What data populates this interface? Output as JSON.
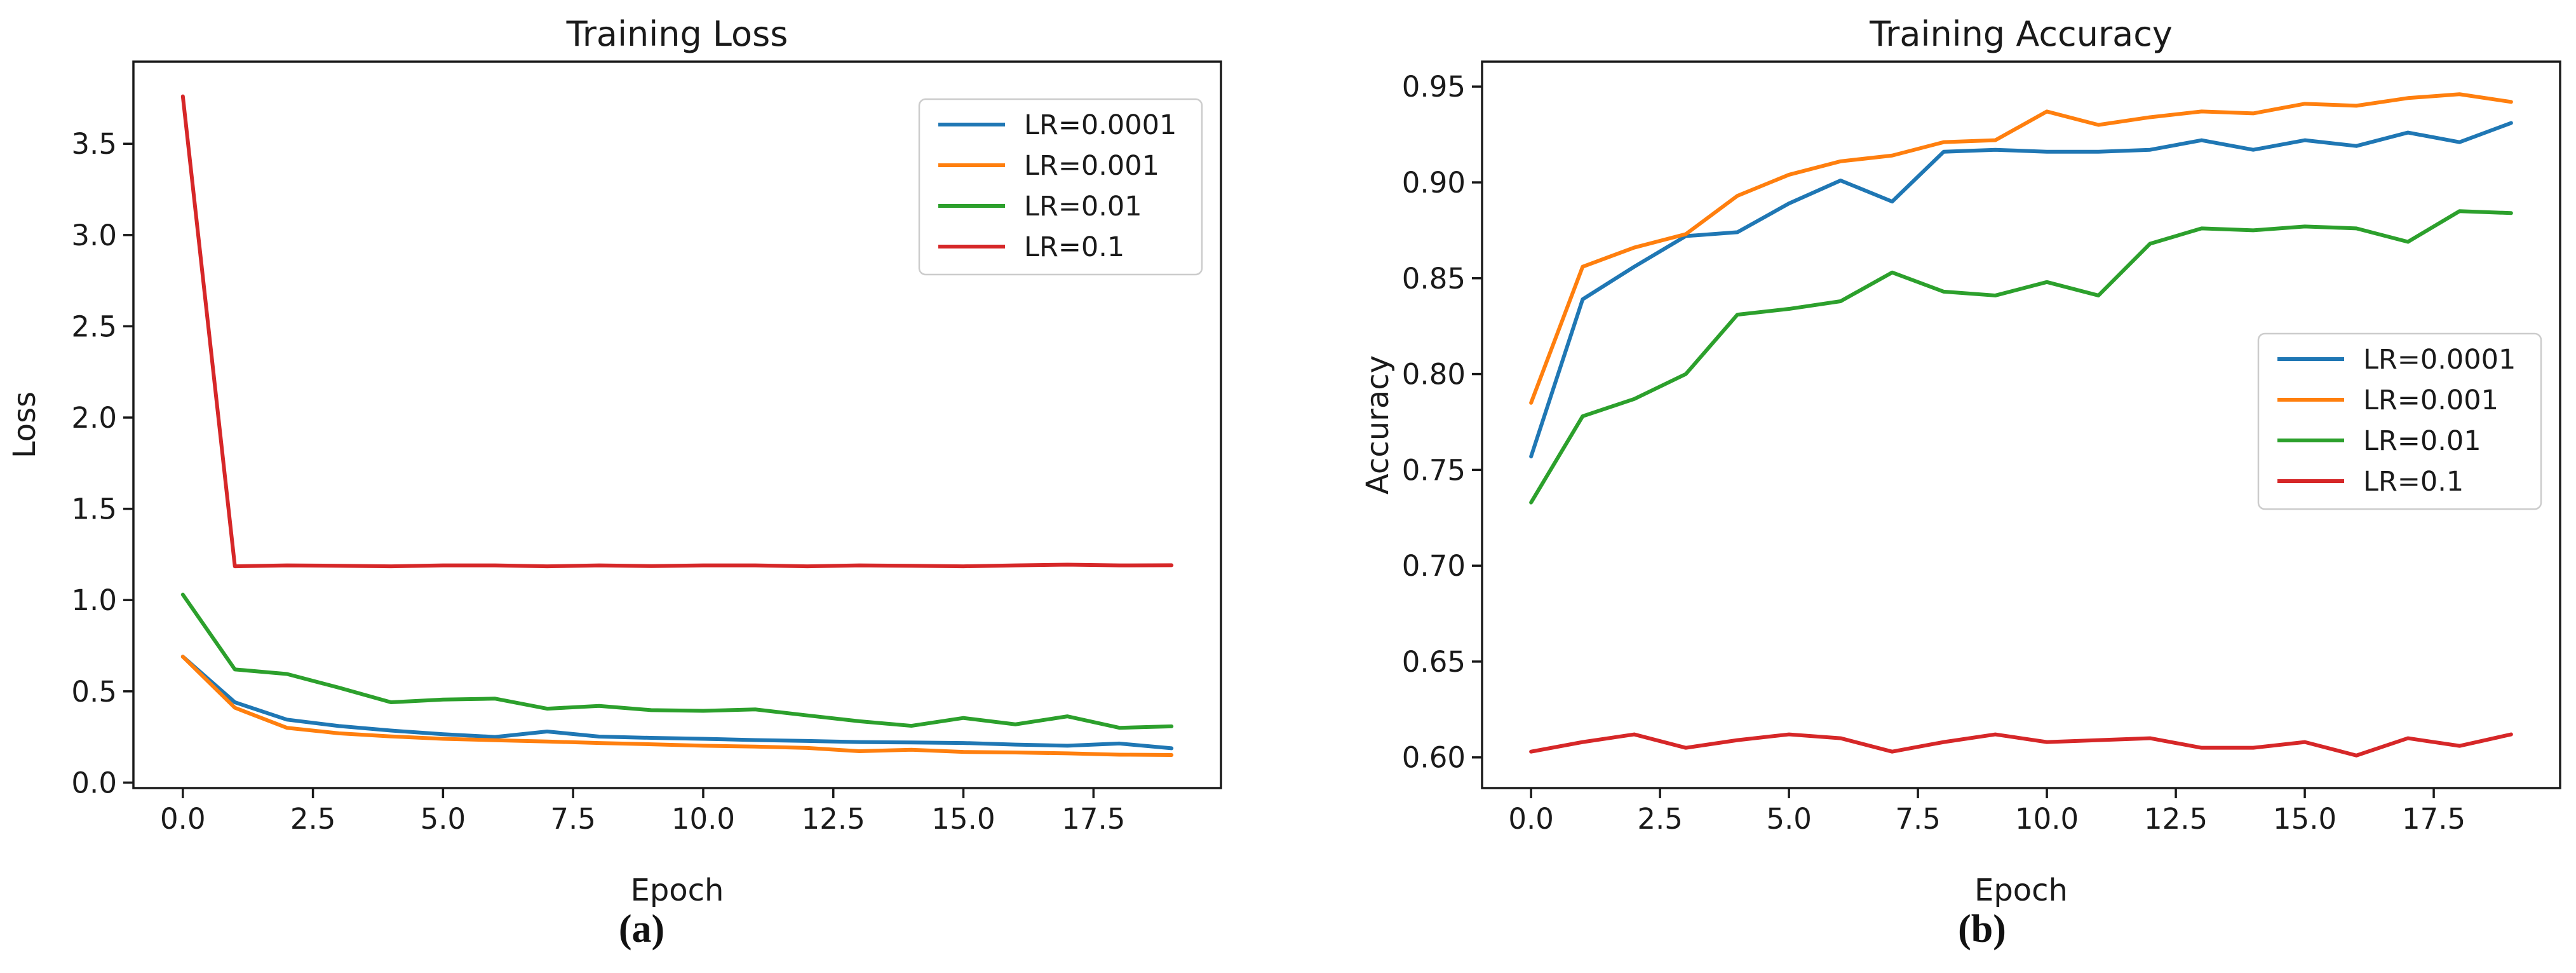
{
  "figure": {
    "background": "#ffffff",
    "text_color": "#1a1a1a",
    "spine_color": "#1a1a1a",
    "legend_border_color": "#cccccc"
  },
  "captions": {
    "a": "(a)",
    "b": "(b)"
  },
  "chart_data": [
    {
      "type": "line",
      "title": "Training Loss",
      "xlabel": "Epoch",
      "ylabel": "Loss",
      "caption": "(a)",
      "xlim": [
        -0.95,
        19.95
      ],
      "ylim": [
        -0.03,
        3.95
      ],
      "grid": false,
      "legend_position": "upper-right",
      "xticks": [
        0.0,
        2.5,
        5.0,
        7.5,
        10.0,
        12.5,
        15.0,
        17.5
      ],
      "xtick_labels": [
        "0.0",
        "2.5",
        "5.0",
        "7.5",
        "10.0",
        "12.5",
        "15.0",
        "17.5"
      ],
      "yticks": [
        0.0,
        0.5,
        1.0,
        1.5,
        2.0,
        2.5,
        3.0,
        3.5
      ],
      "ytick_labels": [
        "0.0",
        "0.5",
        "1.0",
        "1.5",
        "2.0",
        "2.5",
        "3.0",
        "3.5"
      ],
      "x": [
        0,
        1,
        2,
        3,
        4,
        5,
        6,
        7,
        8,
        9,
        10,
        11,
        12,
        13,
        14,
        15,
        16,
        17,
        18,
        19
      ],
      "series": [
        {
          "name": "LR=0.0001",
          "color": "#1f77b4",
          "values": [
            0.69,
            0.44,
            0.345,
            0.31,
            0.285,
            0.265,
            0.25,
            0.28,
            0.252,
            0.245,
            0.24,
            0.233,
            0.228,
            0.222,
            0.22,
            0.217,
            0.208,
            0.202,
            0.214,
            0.188
          ]
        },
        {
          "name": "LR=0.001",
          "color": "#ff7f0e",
          "values": [
            0.69,
            0.41,
            0.3,
            0.27,
            0.253,
            0.24,
            0.232,
            0.225,
            0.217,
            0.21,
            0.202,
            0.197,
            0.19,
            0.172,
            0.18,
            0.168,
            0.165,
            0.16,
            0.153,
            0.151
          ]
        },
        {
          "name": "LR=0.01",
          "color": "#2ca02c",
          "values": [
            1.03,
            0.62,
            0.595,
            0.52,
            0.44,
            0.455,
            0.46,
            0.405,
            0.42,
            0.397,
            0.393,
            0.401,
            0.368,
            0.336,
            0.311,
            0.354,
            0.319,
            0.363,
            0.3,
            0.308
          ]
        },
        {
          "name": "LR=0.1",
          "color": "#d62728",
          "values": [
            3.76,
            1.185,
            1.19,
            1.188,
            1.185,
            1.19,
            1.19,
            1.185,
            1.19,
            1.186,
            1.19,
            1.19,
            1.185,
            1.19,
            1.188,
            1.185,
            1.19,
            1.194,
            1.19,
            1.191
          ]
        }
      ]
    },
    {
      "type": "line",
      "title": "Training Accuracy",
      "xlabel": "Epoch",
      "ylabel": "Accuracy",
      "caption": "(b)",
      "xlim": [
        -0.95,
        19.95
      ],
      "ylim": [
        0.584,
        0.963
      ],
      "grid": false,
      "legend_position": "center-right",
      "xticks": [
        0.0,
        2.5,
        5.0,
        7.5,
        10.0,
        12.5,
        15.0,
        17.5
      ],
      "xtick_labels": [
        "0.0",
        "2.5",
        "5.0",
        "7.5",
        "10.0",
        "12.5",
        "15.0",
        "17.5"
      ],
      "yticks": [
        0.6,
        0.65,
        0.7,
        0.75,
        0.8,
        0.85,
        0.9,
        0.95
      ],
      "ytick_labels": [
        "0.60",
        "0.65",
        "0.70",
        "0.75",
        "0.80",
        "0.85",
        "0.90",
        "0.95"
      ],
      "x": [
        0,
        1,
        2,
        3,
        4,
        5,
        6,
        7,
        8,
        9,
        10,
        11,
        12,
        13,
        14,
        15,
        16,
        17,
        18,
        19
      ],
      "series": [
        {
          "name": "LR=0.0001",
          "color": "#1f77b4",
          "values": [
            0.757,
            0.839,
            0.856,
            0.872,
            0.874,
            0.889,
            0.901,
            0.89,
            0.916,
            0.917,
            0.916,
            0.916,
            0.917,
            0.922,
            0.917,
            0.922,
            0.919,
            0.926,
            0.921,
            0.931
          ]
        },
        {
          "name": "LR=0.001",
          "color": "#ff7f0e",
          "values": [
            0.785,
            0.856,
            0.866,
            0.873,
            0.893,
            0.904,
            0.911,
            0.914,
            0.921,
            0.922,
            0.937,
            0.93,
            0.934,
            0.937,
            0.936,
            0.941,
            0.94,
            0.944,
            0.946,
            0.942
          ]
        },
        {
          "name": "LR=0.01",
          "color": "#2ca02c",
          "values": [
            0.733,
            0.778,
            0.787,
            0.8,
            0.831,
            0.834,
            0.838,
            0.853,
            0.843,
            0.841,
            0.848,
            0.841,
            0.868,
            0.876,
            0.875,
            0.877,
            0.876,
            0.869,
            0.885,
            0.884
          ]
        },
        {
          "name": "LR=0.1",
          "color": "#d62728",
          "values": [
            0.603,
            0.608,
            0.612,
            0.605,
            0.609,
            0.612,
            0.61,
            0.603,
            0.608,
            0.612,
            0.608,
            0.609,
            0.61,
            0.605,
            0.605,
            0.608,
            0.601,
            0.61,
            0.606,
            0.612
          ]
        }
      ]
    }
  ]
}
